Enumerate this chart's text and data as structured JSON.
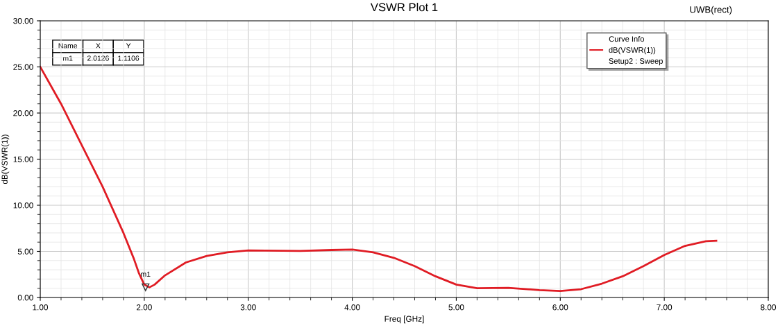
{
  "chart_data": {
    "type": "line",
    "title": "VSWR Plot 1",
    "xlabel": "Freq [GHz]",
    "ylabel": "dB(VSWR(1))",
    "legend_title": "Curve Info",
    "xlim": [
      1,
      8
    ],
    "xticks": [
      {
        "value": 1,
        "label": "1.00"
      },
      {
        "value": 2,
        "label": "2.00"
      },
      {
        "value": 3,
        "label": "3.00"
      },
      {
        "value": 4,
        "label": "4.00"
      },
      {
        "value": 5,
        "label": "5.00"
      },
      {
        "value": 6,
        "label": "6.00"
      },
      {
        "value": 7,
        "label": "7.00"
      },
      {
        "value": 8,
        "label": "8.00"
      }
    ],
    "ylim": [
      0,
      30
    ],
    "yticks": [
      {
        "value": 0,
        "label": "0.00"
      },
      {
        "value": 5,
        "label": "5.00"
      },
      {
        "value": 10,
        "label": "10.00"
      },
      {
        "value": 15,
        "label": "15.00"
      },
      {
        "value": 20,
        "label": "20.00"
      },
      {
        "value": 25,
        "label": "25.00"
      },
      {
        "value": 30,
        "label": "30.00"
      }
    ],
    "grid": true,
    "legend": "top right",
    "marker": "none",
    "line_style": "solid",
    "x": [
      1.0,
      1.2,
      1.4,
      1.6,
      1.8,
      1.9,
      1.95,
      2.0,
      2.05,
      2.1,
      2.2,
      2.4,
      2.6,
      2.8,
      3.0,
      3.5,
      3.8,
      4.0,
      4.2,
      4.4,
      4.6,
      4.8,
      5.0,
      5.2,
      5.5,
      5.8,
      6.0,
      6.2,
      6.4,
      6.6,
      6.8,
      7.0,
      7.2,
      7.4,
      7.5
    ],
    "series": [
      {
        "name": "dB(VSWR(1))",
        "color": "#e01c24",
        "values": [
          25.0,
          21.0,
          16.5,
          12.0,
          7.0,
          4.2,
          2.6,
          1.4,
          1.1,
          1.4,
          2.4,
          3.8,
          4.5,
          4.9,
          5.1,
          5.05,
          5.15,
          5.2,
          4.9,
          4.3,
          3.4,
          2.3,
          1.4,
          1.0,
          1.05,
          0.8,
          0.7,
          0.9,
          1.5,
          2.3,
          3.4,
          4.6,
          5.6,
          6.1,
          6.15
        ]
      }
    ],
    "annotations": [
      "Name",
      "X",
      "Y",
      "m1",
      "2.0126",
      "1.1106",
      "Setup2 : Sweep",
      "UWB(rect)",
      {
        "text": "m1",
        "x": 2.0126,
        "y": 1.1106
      }
    ]
  }
}
